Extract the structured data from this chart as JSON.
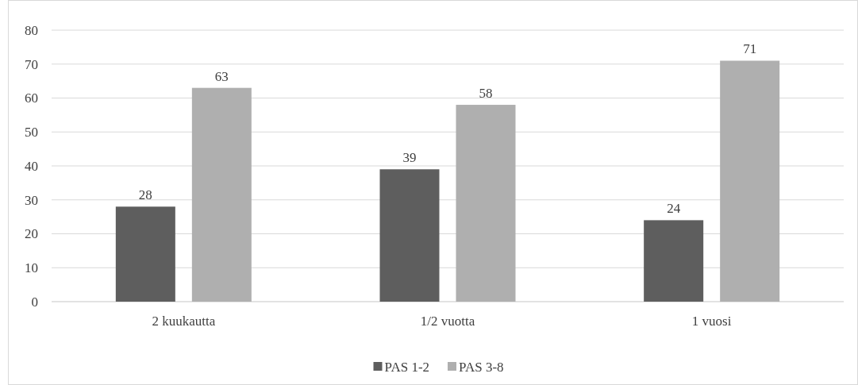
{
  "chart_data": {
    "type": "bar",
    "categories": [
      "2 kuukautta",
      "1/2 vuotta",
      "1 vuosi"
    ],
    "series": [
      {
        "name": "PAS 1-2",
        "color": "#5e5e5e",
        "values": [
          28,
          39,
          24
        ]
      },
      {
        "name": "PAS 3-8",
        "color": "#afafaf",
        "values": [
          63,
          58,
          71
        ]
      }
    ],
    "ylim": [
      0,
      80
    ],
    "yticks": [
      0,
      10,
      20,
      30,
      40,
      50,
      60,
      70,
      80
    ],
    "grid": "y",
    "legend": "bottom",
    "data_labels": true
  }
}
